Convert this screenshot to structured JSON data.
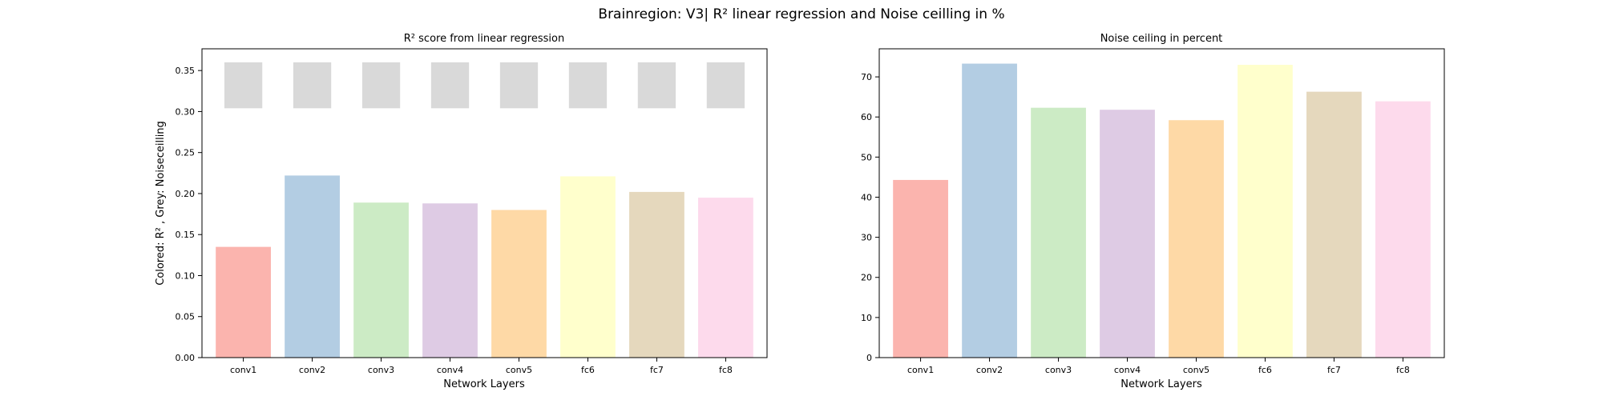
{
  "figure": {
    "title": "Brainregion: V3| R² linear regression and Noise ceilling in %"
  },
  "chart_data": [
    {
      "type": "bar",
      "title": "R² score from linear regression",
      "xlabel": "Network Layers",
      "ylabel": "Colored: R² , Grey: Noiseceilling",
      "categories": [
        "conv1",
        "conv2",
        "conv3",
        "conv4",
        "conv5",
        "fc6",
        "fc7",
        "fc8"
      ],
      "series": [
        {
          "values": [
            0.135,
            0.222,
            0.189,
            0.188,
            0.18,
            0.221,
            0.202,
            0.195
          ]
        },
        {
          "values": [
            0.36,
            0.36,
            0.36,
            0.36,
            0.36,
            0.36,
            0.36,
            0.36
          ],
          "base": [
            0.304,
            0.304,
            0.304,
            0.304,
            0.304,
            0.304,
            0.304,
            0.304
          ]
        }
      ],
      "ylim": [
        0,
        0.3765
      ],
      "yticks": [
        0.0,
        0.05,
        0.1,
        0.15,
        0.2,
        0.25,
        0.3,
        0.35
      ],
      "ytick_labels": [
        "0.00",
        "0.05",
        "0.10",
        "0.15",
        "0.20",
        "0.25",
        "0.30",
        "0.35"
      ],
      "colors": [
        "#fbb4ae",
        "#b3cde3",
        "#ccebc5",
        "#decbe4",
        "#fed9a6",
        "#ffffcc",
        "#e5d8bd",
        "#fddaec"
      ],
      "noise_color": "#d9d9d9",
      "grid": false
    },
    {
      "type": "bar",
      "title": "Noise ceiling in percent",
      "xlabel": "Network Layers",
      "ylabel": "",
      "categories": [
        "conv1",
        "conv2",
        "conv3",
        "conv4",
        "conv5",
        "fc6",
        "fc7",
        "fc8"
      ],
      "series": [
        {
          "values": [
            44.3,
            73.3,
            62.3,
            61.8,
            59.2,
            73.0,
            66.3,
            63.9
          ]
        }
      ],
      "ylim": [
        0,
        77.0
      ],
      "yticks": [
        0,
        10,
        20,
        30,
        40,
        50,
        60,
        70
      ],
      "ytick_labels": [
        "0",
        "10",
        "20",
        "30",
        "40",
        "50",
        "60",
        "70"
      ],
      "colors": [
        "#fbb4ae",
        "#b3cde3",
        "#ccebc5",
        "#decbe4",
        "#fed9a6",
        "#ffffcc",
        "#e5d8bd",
        "#fddaec"
      ],
      "grid": false
    }
  ]
}
